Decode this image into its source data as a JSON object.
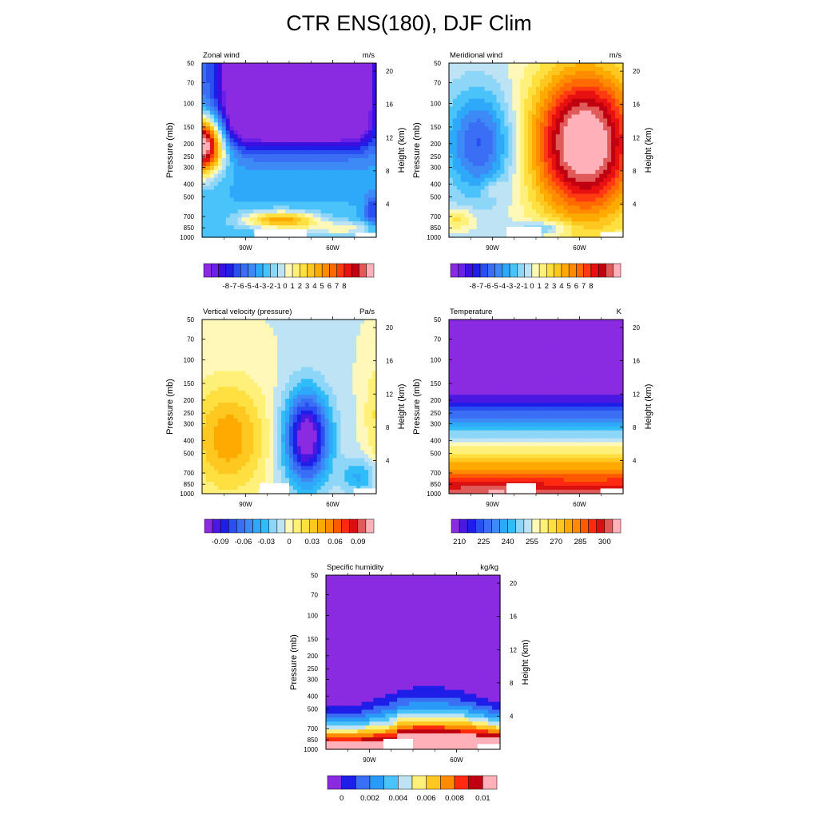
{
  "title": "CTR ENS(180), DJF Clim",
  "pressure_ticks": [
    "50",
    "70",
    "100",
    "150",
    "200",
    "250",
    "300",
    "400",
    "500",
    "700",
    "850",
    "1000"
  ],
  "pressure_values": [
    50,
    70,
    100,
    150,
    200,
    250,
    300,
    400,
    500,
    700,
    850,
    1000
  ],
  "height_ticks": [
    "20",
    "16",
    "12",
    "8",
    "4"
  ],
  "height_values": [
    20,
    16,
    12,
    8,
    4
  ],
  "lon_ticks": [
    "90W",
    "60W"
  ],
  "lon_values": [
    -90,
    -60
  ],
  "lon_range": [
    -105,
    -45
  ],
  "left_axis_label": "Pressure (mb)",
  "right_axis_label": "Height (km)",
  "chart_data": [
    {
      "type": "heatmap",
      "title": "Zonal wind",
      "units": "m/s",
      "xlim": [
        -105,
        -45
      ],
      "ylim": [
        1000,
        50
      ],
      "colorbar_labels": [
        "-8",
        "-7",
        "-6",
        "-5",
        "-4",
        "-3",
        "-2",
        "-1",
        "0",
        "1",
        "2",
        "3",
        "4",
        "5",
        "6",
        "7",
        "8"
      ],
      "levels": [
        -8,
        -7,
        -6,
        -5,
        -4,
        -3,
        -2,
        -1,
        0,
        1,
        2,
        3,
        4,
        5,
        6,
        7,
        8
      ],
      "colors": [
        "#8a2be2",
        "#6a20e6",
        "#3a10e0",
        "#1e1ee8",
        "#2a4ff0",
        "#3a6ef4",
        "#3d8af6",
        "#2ea8f8",
        "#4ac2fa",
        "#8ed6f8",
        "#bde3f4",
        "#fff8b8",
        "#fff07a",
        "#ffe040",
        "#ffc820",
        "#ffaa00",
        "#ff8c00",
        "#ff6a00",
        "#ff3a10",
        "#e81010",
        "#c00010",
        "#e05a5a",
        "#ffb0b8"
      ],
      "summary": "Westerly core above 150 mb in the center of the section (about -8 m/s or below); strong positive jet near the western edge around 200 mb (above 8 m/s); weak values near the surface"
    },
    {
      "type": "heatmap",
      "title": "Meridional wind",
      "units": "m/s",
      "xlim": [
        -105,
        -45
      ],
      "ylim": [
        1000,
        50
      ],
      "colorbar_labels": [
        "-8",
        "-7",
        "-6",
        "-5",
        "-4",
        "-3",
        "-2",
        "-1",
        "0",
        "1",
        "2",
        "3",
        "4",
        "5",
        "6",
        "7",
        "8"
      ],
      "levels": [
        -8,
        -7,
        -6,
        -5,
        -4,
        -3,
        -2,
        -1,
        0,
        1,
        2,
        3,
        4,
        5,
        6,
        7,
        8
      ],
      "summary": "Negative values about -3 m/s centered near 95W at 200 mb; positive maximum above 8 m/s centered near 55W at 200 mb"
    },
    {
      "type": "heatmap",
      "title": "Vertical velocity (pressure)",
      "units": "Pa/s",
      "xlim": [
        -105,
        -45
      ],
      "ylim": [
        1000,
        50
      ],
      "colorbar_labels": [
        "-0.09",
        "-0.06",
        "-0.03",
        "0",
        "0.03",
        "0.06",
        "0.09"
      ],
      "levels": [
        -0.1,
        -0.09,
        -0.08,
        -0.07,
        -0.06,
        -0.05,
        -0.04,
        -0.03,
        -0.02,
        -0.01,
        0,
        0.01,
        0.02,
        0.03,
        0.04,
        0.05,
        0.06,
        0.07,
        0.08,
        0.09,
        0.1
      ],
      "summary": "Positive (0.03 to 0.06 Pa/s) in the western half below 150 mb; strong negative (about -0.09 Pa/s) centered near 70W around 400 mb"
    },
    {
      "type": "heatmap",
      "title": "Temperature",
      "units": "K",
      "xlim": [
        -105,
        -45
      ],
      "ylim": [
        1000,
        50
      ],
      "colorbar_labels": [
        "210",
        "225",
        "240",
        "255",
        "270",
        "285",
        "300"
      ],
      "levels": [
        205,
        210,
        215,
        220,
        225,
        230,
        235,
        240,
        245,
        250,
        255,
        260,
        265,
        270,
        275,
        280,
        285,
        290,
        295,
        300,
        305
      ],
      "summary": "Horizontally uniform stratification; about 205 K or below above 180 mb, increasing to about 300 K near the surface"
    },
    {
      "type": "heatmap",
      "title": "Specific humidity",
      "units": "kg/kg",
      "xlim": [
        -105,
        -45
      ],
      "ylim": [
        1000,
        50
      ],
      "colorbar_labels": [
        "0",
        "0.002",
        "0.004",
        "0.006",
        "0.008",
        "0.01"
      ],
      "levels": [
        0,
        0.001,
        0.002,
        0.003,
        0.004,
        0.005,
        0.006,
        0.007,
        0.008,
        0.009,
        0.01
      ],
      "summary": "Near zero above 400 mb; increases toward the surface, exceeding 0.01 kg/kg near 850-1000 mb east of 70W"
    }
  ]
}
